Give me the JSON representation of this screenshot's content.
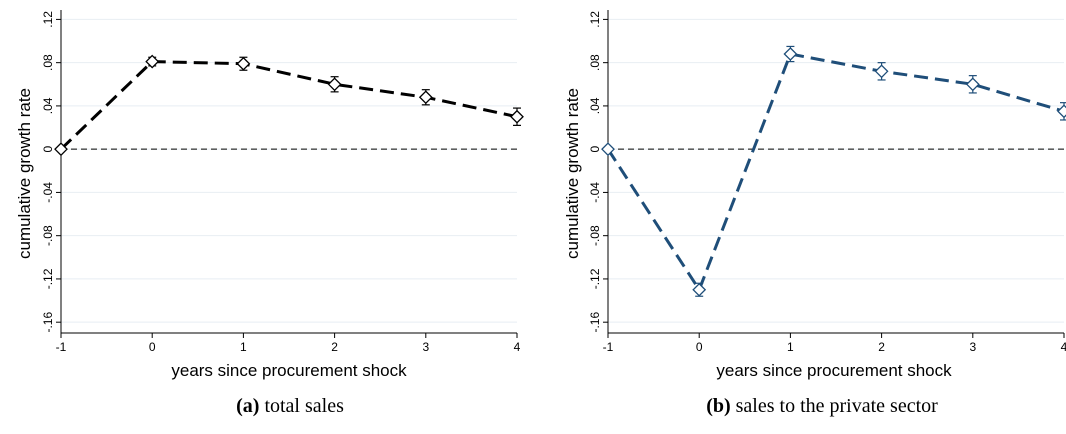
{
  "figure": {
    "panels": [
      {
        "caption_letter": "(a)",
        "caption_text": "total sales"
      },
      {
        "caption_letter": "(b)",
        "caption_text": "sales to the private sector"
      }
    ]
  },
  "chart_data": [
    {
      "type": "line",
      "title": "",
      "xlabel": "years since procurement shock",
      "ylabel": "cumulative growth rate",
      "x": [
        -1,
        0,
        1,
        2,
        3,
        4
      ],
      "xticks": [
        -1,
        0,
        1,
        2,
        3,
        4
      ],
      "xtick_labels": [
        "-1",
        "0",
        "1",
        "2",
        "3",
        "4"
      ],
      "yticks": [
        0.12,
        0.08,
        0.04,
        0,
        -0.04,
        -0.08,
        -0.12,
        -0.16
      ],
      "ytick_labels": [
        ".12",
        ".08",
        ".04",
        "0",
        "-.04",
        "-.08",
        "-.12",
        "-.16"
      ],
      "ylim": [
        -0.17,
        0.125
      ],
      "xlim": [
        -1,
        4
      ],
      "grid": true,
      "reference_line_y": 0,
      "series": [
        {
          "values": [
            0.0,
            0.081,
            0.079,
            0.06,
            0.048,
            0.03
          ],
          "ci_low": [
            0.0,
            0.077,
            0.073,
            0.053,
            0.041,
            0.022
          ],
          "ci_high": [
            0.0,
            0.085,
            0.085,
            0.067,
            0.055,
            0.038
          ],
          "color": "#000000",
          "marker": "diamond",
          "line_style": "dashed"
        }
      ]
    },
    {
      "type": "line",
      "title": "",
      "xlabel": "years since procurement shock",
      "ylabel": "cumulative growth rate",
      "x": [
        -1,
        0,
        1,
        2,
        3,
        4
      ],
      "xticks": [
        -1,
        0,
        1,
        2,
        3,
        4
      ],
      "xtick_labels": [
        "-1",
        "0",
        "1",
        "2",
        "3",
        "4"
      ],
      "yticks": [
        0.12,
        0.08,
        0.04,
        0,
        -0.04,
        -0.08,
        -0.12,
        -0.16
      ],
      "ytick_labels": [
        ".12",
        ".08",
        ".04",
        "0",
        "-.04",
        "-.08",
        "-.12",
        "-.16"
      ],
      "ylim": [
        -0.17,
        0.125
      ],
      "xlim": [
        -1,
        4
      ],
      "grid": true,
      "reference_line_y": 0,
      "series": [
        {
          "values": [
            0.0,
            -0.13,
            0.088,
            0.072,
            0.06,
            0.035
          ],
          "ci_low": [
            0.0,
            -0.136,
            0.081,
            0.064,
            0.052,
            0.027
          ],
          "ci_high": [
            0.0,
            -0.124,
            0.095,
            0.08,
            0.068,
            0.043
          ],
          "color": "#1f4e79",
          "marker": "diamond",
          "line_style": "dashed"
        }
      ]
    }
  ]
}
